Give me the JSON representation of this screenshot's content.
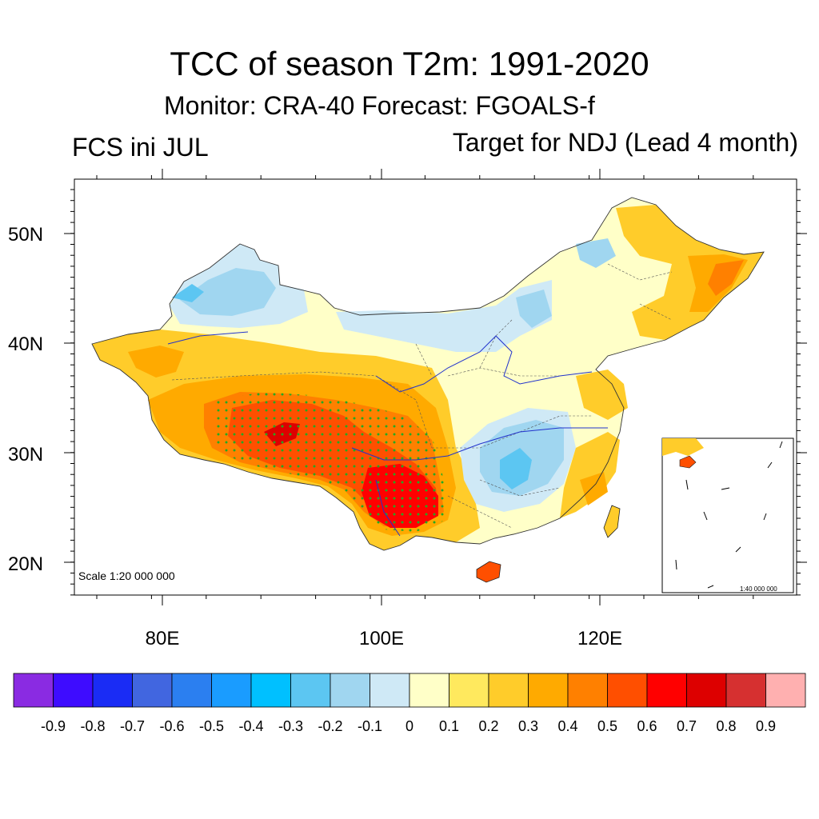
{
  "header": {
    "title": "TCC of season T2m: 1991-2020",
    "subtitle": "Monitor: CRA-40   Forecast: FGOALS-f",
    "left_label": "FCS ini JUL",
    "right_label": "Target for NDJ (Lead 4 month)"
  },
  "map": {
    "lat_labels": [
      "50N",
      "40N",
      "30N",
      "20N"
    ],
    "lon_labels": [
      "80E",
      "100E",
      "120E"
    ],
    "scale_text": "Scale 1:20 000 000",
    "inset_scale_text": "1:40 000 000",
    "significance_marker": "green dots"
  },
  "colorbar": {
    "colors": [
      "#8a2be2",
      "#3e0cff",
      "#1a2cf5",
      "#4166e0",
      "#2b7ff0",
      "#1a9cff",
      "#00c0ff",
      "#5cc6f2",
      "#a0d6f0",
      "#cfe9f6",
      "#ffffc8",
      "#ffe95e",
      "#ffcc2a",
      "#ffaa00",
      "#ff8000",
      "#ff4f00",
      "#ff0000",
      "#dd0000",
      "#d63030",
      "#ffb0b0"
    ],
    "labels": [
      "-0.9",
      "-0.8",
      "-0.7",
      "-0.6",
      "-0.5",
      "-0.4",
      "-0.3",
      "-0.2",
      "-0.1",
      "0",
      "0.1",
      "0.2",
      "0.3",
      "0.4",
      "0.5",
      "0.6",
      "0.7",
      "0.8",
      "0.9"
    ]
  }
}
